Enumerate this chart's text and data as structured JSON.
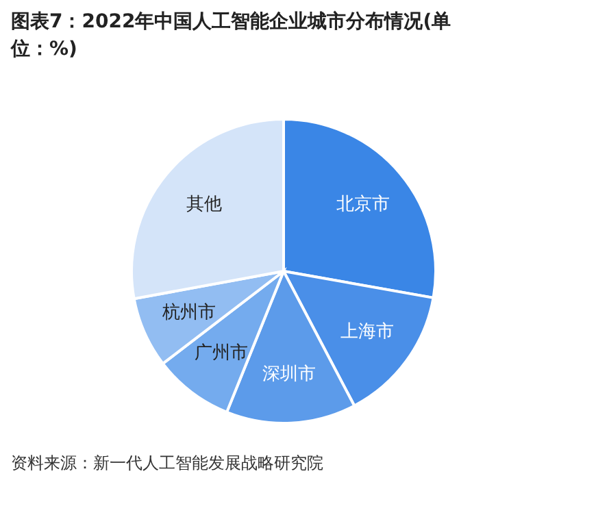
{
  "chart_data": {
    "type": "pie",
    "title": "图表7：2022年中国人工智能企业城市分布情况(单位：%)",
    "categories": [
      "北京市",
      "上海市",
      "深圳市",
      "广州市",
      "杭州市",
      "其他"
    ],
    "values": [
      27.8,
      14.5,
      13.8,
      8.5,
      7.5,
      27.9
    ],
    "colors": [
      "#3a86e6",
      "#4a8fe8",
      "#5c9bea",
      "#74abee",
      "#92bdf2",
      "#d4e4f9"
    ],
    "legend": false,
    "annotations": [
      "资料来源：新一代人工智能发展战略研究院"
    ]
  }
}
